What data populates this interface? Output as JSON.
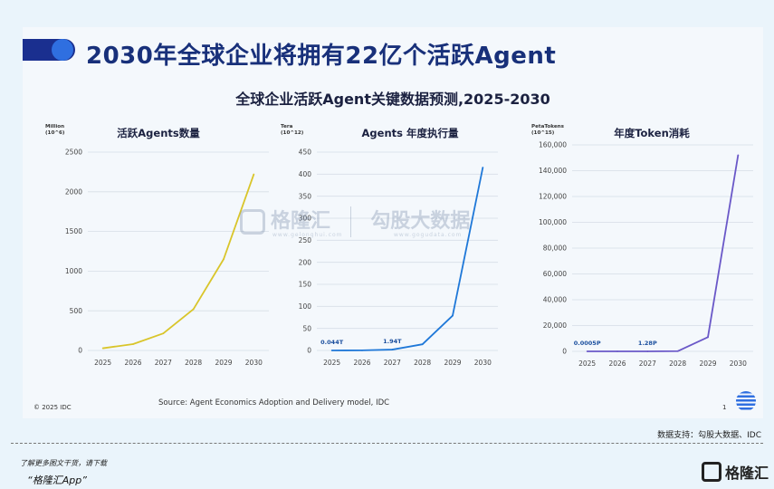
{
  "headline": "2030年全球企业将拥有22亿个活跃Agent",
  "subtitle": "全球企业活跃Agent关键数据预测,2025-2030",
  "source": "Source: Agent Economics Adoption and Delivery model, IDC",
  "copyright": "© 2025 IDC",
  "page_number": "1",
  "watermark": {
    "brand1": "格隆汇",
    "brand1_url": "www.gelonghui.com",
    "brand2": "勾股大数据",
    "brand2_url": "www.gogudata.com"
  },
  "footer": {
    "support": "数据支持：勾股大数据、IDC",
    "line1": "了解更多图文干货，请下载",
    "line2": "“格隆汇App”",
    "brand": "格隆汇"
  },
  "colors": {
    "navy": "#18307a",
    "yellow": "#d9c52a",
    "blue": "#1f78d8",
    "purple": "#6a58c8"
  },
  "chart_data": [
    {
      "type": "line",
      "title": "活跃Agents数量",
      "unit": [
        "Million",
        "(10^6)"
      ],
      "x": [
        "2025",
        "2026",
        "2027",
        "2028",
        "2029",
        "2030"
      ],
      "values": [
        28,
        80,
        215,
        520,
        1150,
        2220
      ],
      "ylim": [
        0,
        2500
      ],
      "yticks": [
        0,
        500,
        1000,
        1500,
        2000,
        2500
      ],
      "ytick_labels": [
        "0",
        "500",
        "1000",
        "1500",
        "2000",
        "2500"
      ],
      "color": "#d9c52a",
      "grid": true,
      "annotations": []
    },
    {
      "type": "line",
      "title": "Agents 年度执行量",
      "unit": [
        "Tera",
        "(10^12)"
      ],
      "x": [
        "2025",
        "2026",
        "2027",
        "2028",
        "2029",
        "2030"
      ],
      "values": [
        0.044,
        0.3,
        1.94,
        14,
        79,
        415
      ],
      "ylim": [
        0,
        450
      ],
      "yticks": [
        0,
        50,
        100,
        150,
        200,
        250,
        300,
        350,
        400,
        450
      ],
      "ytick_labels": [
        "0",
        "50",
        "100",
        "150",
        "200",
        "250",
        "300",
        "350",
        "400",
        "450"
      ],
      "color": "#1f78d8",
      "grid": true,
      "annotations": [
        {
          "x": "2025",
          "text": "0.044T"
        },
        {
          "x": "2027",
          "text": "1.94T"
        }
      ]
    },
    {
      "type": "line",
      "title": "年度Token消耗",
      "unit": [
        "PetaTokens",
        "(10^15)"
      ],
      "x": [
        "2025",
        "2026",
        "2027",
        "2028",
        "2029",
        "2030"
      ],
      "values": [
        0.0005,
        0.05,
        1.28,
        150,
        11000,
        152000
      ],
      "ylim": [
        0,
        160000
      ],
      "yticks": [
        0,
        20000,
        40000,
        60000,
        80000,
        100000,
        120000,
        140000,
        160000
      ],
      "ytick_labels": [
        "0",
        "20,000",
        "40,000",
        "60,000",
        "80,000",
        "100,000",
        "120,000",
        "140,000",
        "160,000"
      ],
      "color": "#6a58c8",
      "grid": true,
      "annotations": [
        {
          "x": "2025",
          "text": "0.0005P"
        },
        {
          "x": "2027",
          "text": "1.28P"
        }
      ]
    }
  ]
}
